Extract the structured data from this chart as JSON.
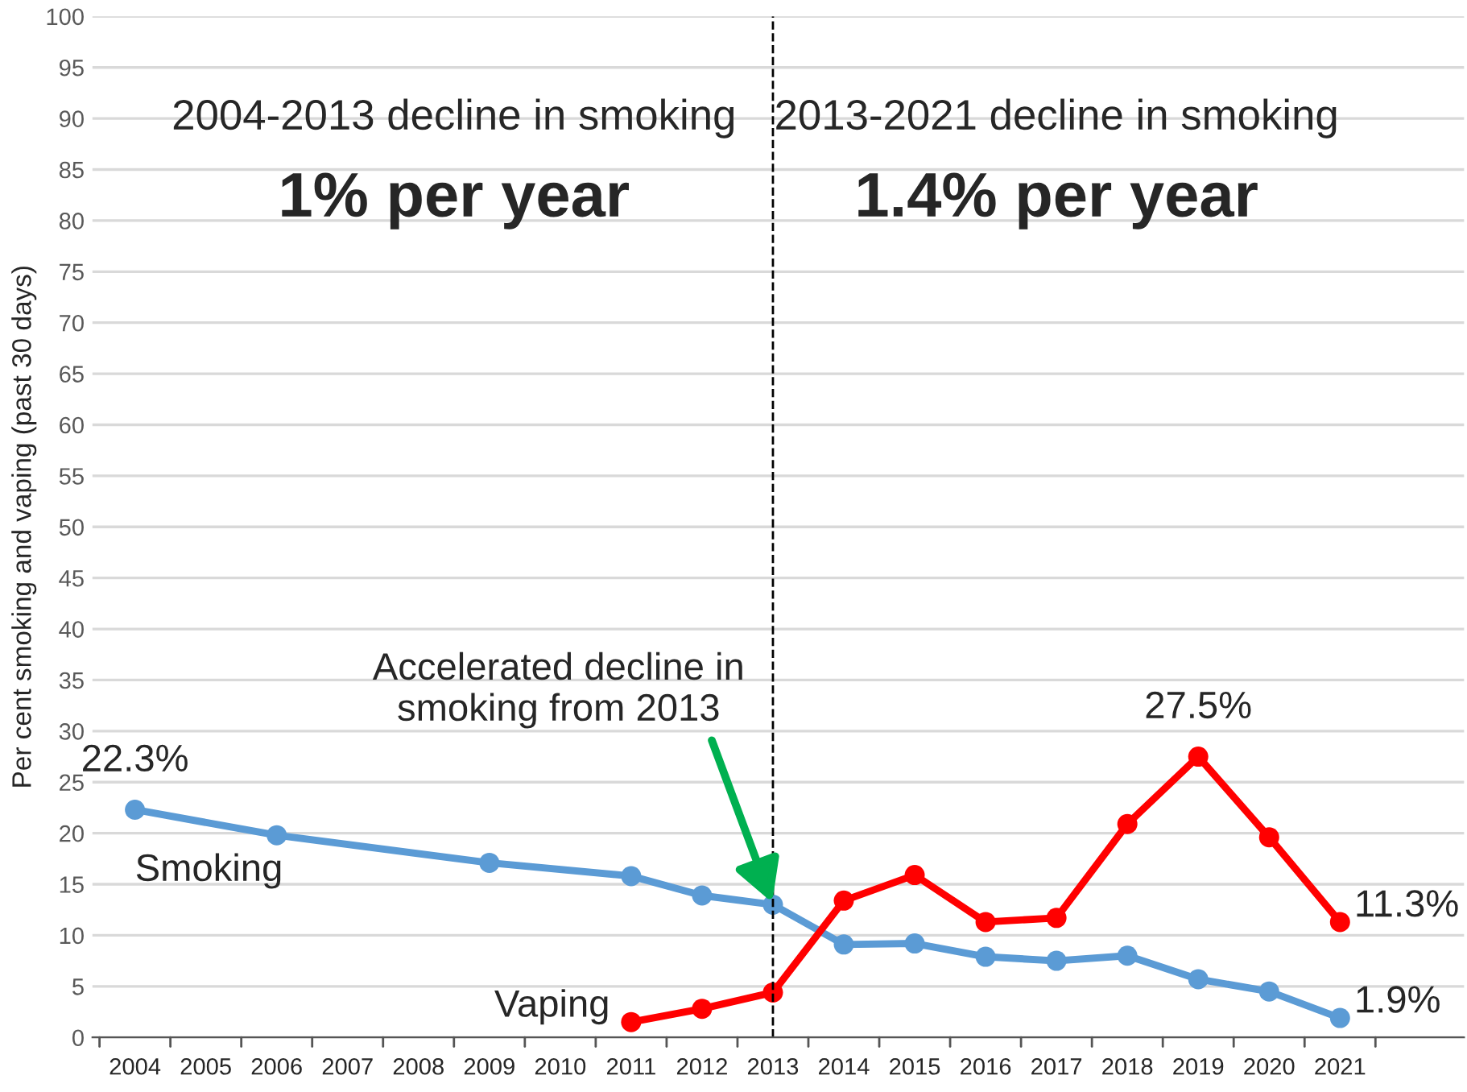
{
  "chart_data": {
    "type": "line",
    "ylabel": "Per cent smoking and vaping (past 30 days)",
    "categories": [
      "2004",
      "2005",
      "2006",
      "2007",
      "2008",
      "2009",
      "2010",
      "2011",
      "2012",
      "2013",
      "2014",
      "2015",
      "2016",
      "2017",
      "2018",
      "2019",
      "2020",
      "2021"
    ],
    "series": [
      {
        "name": "Smoking",
        "color": "#5b9bd5",
        "values": [
          22.3,
          null,
          19.8,
          null,
          null,
          17.1,
          null,
          15.8,
          13.9,
          13.0,
          9.1,
          9.2,
          7.9,
          7.5,
          8.0,
          5.7,
          4.5,
          1.9
        ],
        "value_labels": [
          "22.3%",
          null,
          null,
          null,
          null,
          null,
          null,
          null,
          null,
          null,
          null,
          null,
          null,
          null,
          null,
          null,
          null,
          "1.9%"
        ]
      },
      {
        "name": "Vaping",
        "color": "#ff0000",
        "values": [
          null,
          null,
          null,
          null,
          null,
          null,
          null,
          1.5,
          2.8,
          4.4,
          13.4,
          15.9,
          11.3,
          11.7,
          20.9,
          27.5,
          19.6,
          11.3
        ],
        "value_labels": [
          null,
          null,
          null,
          null,
          null,
          null,
          null,
          null,
          null,
          null,
          null,
          null,
          null,
          null,
          null,
          "27.5%",
          null,
          "11.3%"
        ]
      }
    ],
    "ylim": [
      0,
      100
    ],
    "yticks": [
      0,
      5,
      10,
      15,
      20,
      25,
      30,
      35,
      40,
      45,
      50,
      55,
      60,
      65,
      70,
      75,
      80,
      85,
      90,
      95,
      100
    ],
    "grid": "y",
    "legend": false,
    "marker": "circle",
    "line_style": "solid",
    "ref_lines": [
      {
        "axis": "x",
        "value": "2013",
        "color": "#000000",
        "line_style": "dashed"
      }
    ],
    "annotations": [
      "2004-2013 decline in smoking",
      "1% per year",
      "2013-2021 decline in smoking",
      "1.4% per year",
      {
        "text": "Accelerated decline in\nsmoking from 2013",
        "x": "2013",
        "y": 13.0
      }
    ]
  }
}
